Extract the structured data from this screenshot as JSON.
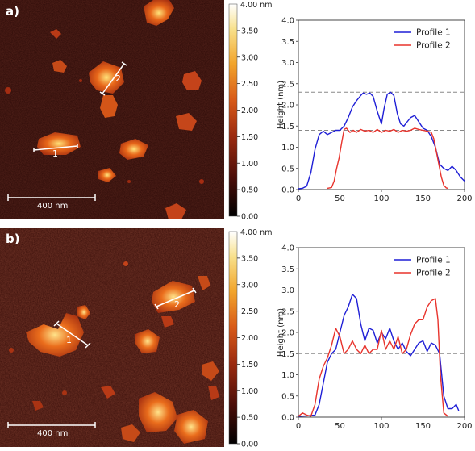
{
  "panels": [
    {
      "label": "a)",
      "scalebar_label": "400 nm",
      "profile_labels": [
        "1",
        "2"
      ],
      "colorbar": {
        "unit_label": "4.00 nm",
        "ticks": [
          "3.50",
          "3.00",
          "2.50",
          "2.00",
          "1.50",
          "1.00",
          "0.50",
          "0.00"
        ]
      },
      "colors": {
        "profile1": "#1f1fd6",
        "profile2": "#e8332c",
        "reference": "#888888"
      },
      "chart_data": {
        "type": "line",
        "xlabel": "",
        "ylabel": "Height (nm)",
        "xlim": [
          0,
          200
        ],
        "ylim": [
          0,
          4.0
        ],
        "xticks": [
          "0",
          "50",
          "100",
          "150",
          "200"
        ],
        "yticks": [
          "0.0",
          "0.5",
          "1.0",
          "1.5",
          "2.0",
          "2.5",
          "3.0",
          "3.5",
          "4.0"
        ],
        "legend_position": "top-right",
        "reference_lines": [
          2.3,
          1.4
        ],
        "series": [
          {
            "name": "Profile 1",
            "x": [
              0,
              5,
              10,
              15,
              20,
              25,
              30,
              35,
              40,
              45,
              50,
              55,
              60,
              65,
              70,
              75,
              78,
              82,
              86,
              90,
              95,
              100,
              103,
              107,
              111,
              115,
              119,
              123,
              127,
              131,
              135,
              140,
              145,
              150,
              155,
              160,
              165,
              170,
              175,
              180,
              185,
              190,
              195,
              200
            ],
            "y": [
              0.02,
              0.03,
              0.08,
              0.4,
              0.95,
              1.3,
              1.38,
              1.3,
              1.35,
              1.4,
              1.4,
              1.5,
              1.7,
              1.95,
              2.1,
              2.22,
              2.28,
              2.25,
              2.28,
              2.2,
              1.85,
              1.55,
              1.9,
              2.25,
              2.3,
              2.22,
              1.8,
              1.55,
              1.5,
              1.6,
              1.7,
              1.75,
              1.6,
              1.45,
              1.4,
              1.25,
              1.0,
              0.6,
              0.5,
              0.45,
              0.55,
              0.45,
              0.3,
              0.2
            ]
          },
          {
            "name": "Profile 2",
            "x": [
              35,
              40,
              43,
              46,
              49,
              52,
              55,
              58,
              62,
              66,
              70,
              75,
              80,
              85,
              90,
              95,
              100,
              105,
              110,
              115,
              120,
              125,
              130,
              135,
              140,
              145,
              150,
              155,
              160,
              163,
              166,
              169,
              172,
              175,
              178,
              180
            ],
            "y": [
              0.03,
              0.05,
              0.2,
              0.5,
              0.75,
              1.1,
              1.42,
              1.45,
              1.35,
              1.4,
              1.35,
              1.42,
              1.38,
              1.4,
              1.35,
              1.42,
              1.35,
              1.4,
              1.38,
              1.42,
              1.35,
              1.4,
              1.38,
              1.4,
              1.45,
              1.42,
              1.4,
              1.38,
              1.35,
              1.2,
              0.9,
              0.6,
              0.3,
              0.1,
              0.04,
              0.03
            ]
          }
        ]
      }
    },
    {
      "label": "b)",
      "scalebar_label": "400 nm",
      "profile_labels": [
        "1",
        "2"
      ],
      "colorbar": {
        "unit_label": "4.00 nm",
        "ticks": [
          "3.50",
          "3.00",
          "2.50",
          "2.00",
          "1.50",
          "1.00",
          "0.50",
          "0.00"
        ]
      },
      "colors": {
        "profile1": "#1f1fd6",
        "profile2": "#e8332c",
        "reference": "#888888"
      },
      "chart_data": {
        "type": "line",
        "xlabel": "",
        "ylabel": "Height (nm)",
        "xlim": [
          0,
          200
        ],
        "ylim": [
          0,
          4.0
        ],
        "xticks": [
          "0",
          "50",
          "100",
          "150",
          "200"
        ],
        "yticks": [
          "0.0",
          "0.5",
          "1.0",
          "1.5",
          "2.0",
          "2.5",
          "3.0",
          "3.5",
          "4.0"
        ],
        "legend_position": "top-right",
        "reference_lines": [
          3.0,
          1.5
        ],
        "series": [
          {
            "name": "Profile 1",
            "x": [
              0,
              10,
              20,
              25,
              30,
              35,
              40,
              45,
              50,
              55,
              60,
              65,
              70,
              75,
              80,
              85,
              90,
              95,
              100,
              105,
              110,
              115,
              120,
              125,
              130,
              135,
              140,
              145,
              150,
              155,
              160,
              165,
              170,
              175,
              180,
              185,
              190,
              193
            ],
            "y": [
              0.02,
              0.03,
              0.05,
              0.3,
              0.8,
              1.3,
              1.5,
              1.6,
              2.0,
              2.4,
              2.6,
              2.9,
              2.8,
              2.2,
              1.8,
              2.1,
              2.05,
              1.75,
              2.0,
              1.85,
              2.1,
              1.8,
              1.6,
              1.75,
              1.55,
              1.45,
              1.6,
              1.75,
              1.8,
              1.55,
              1.75,
              1.7,
              1.5,
              0.5,
              0.2,
              0.2,
              0.3,
              0.15
            ]
          },
          {
            "name": "Profile 2",
            "x": [
              0,
              5,
              10,
              15,
              20,
              25,
              30,
              35,
              40,
              45,
              50,
              55,
              60,
              65,
              70,
              75,
              80,
              85,
              90,
              95,
              100,
              105,
              110,
              115,
              120,
              125,
              130,
              135,
              140,
              145,
              150,
              155,
              160,
              165,
              168,
              171,
              175,
              180
            ],
            "y": [
              0.02,
              0.1,
              0.05,
              0.02,
              0.3,
              0.9,
              1.2,
              1.4,
              1.7,
              2.1,
              1.9,
              1.5,
              1.6,
              1.8,
              1.6,
              1.5,
              1.7,
              1.5,
              1.6,
              1.6,
              2.05,
              1.6,
              1.8,
              1.6,
              1.9,
              1.5,
              1.6,
              1.95,
              2.2,
              2.3,
              2.3,
              2.6,
              2.75,
              2.8,
              2.3,
              1.0,
              0.1,
              0.02
            ]
          }
        ]
      }
    }
  ]
}
